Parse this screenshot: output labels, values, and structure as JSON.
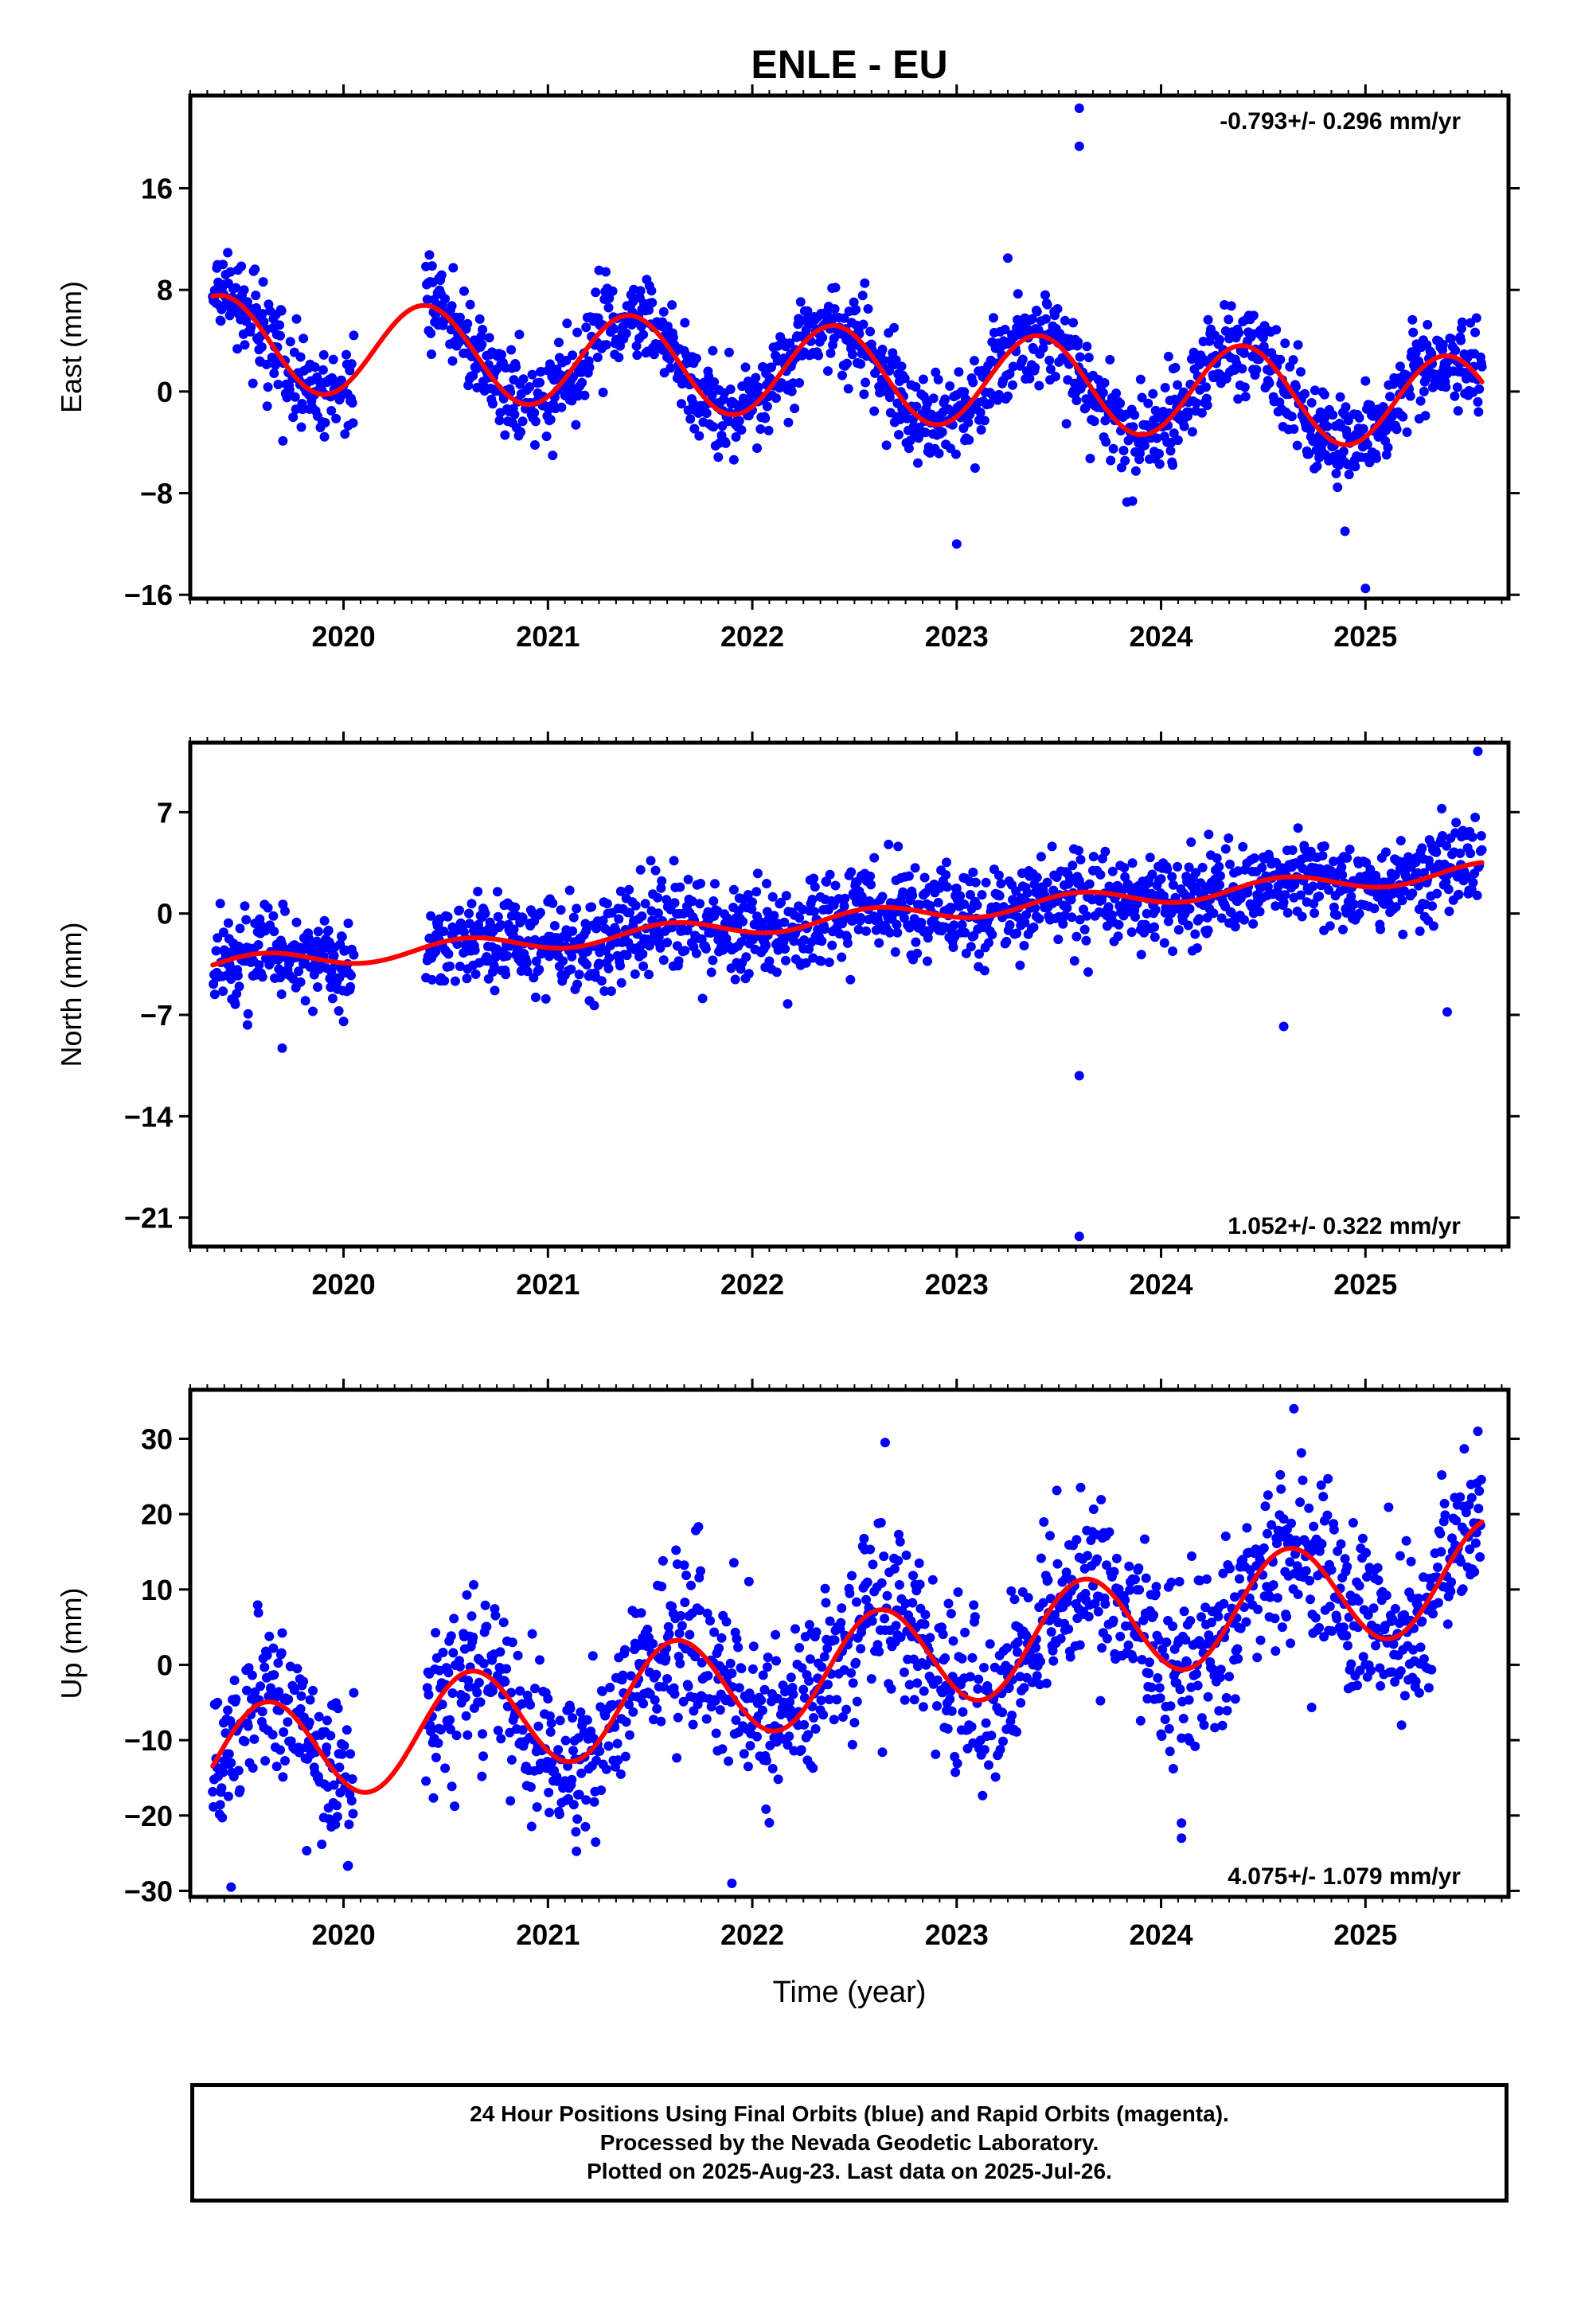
{
  "title": "ENLE - EU",
  "xlabel": "Time (year)",
  "footer": {
    "line1": "24 Hour Positions Using Final Orbits (blue) and Rapid Orbits (magenta).",
    "line2": "Processed by the Nevada Geodetic Laboratory.",
    "line3": "Plotted on 2025-Aug-23. Last data on 2025-Jul-26."
  },
  "colors": {
    "points": "#0000ff",
    "fit": "#ff0000",
    "axes": "#000000"
  },
  "chart_data": [
    {
      "type": "scatter",
      "panel": "east",
      "ylabel": "East (mm)",
      "rate": "-0.793+/- 0.296 mm/yr",
      "rate_position": "top-right",
      "xlim": [
        2019.25,
        2025.7
      ],
      "ylim": [
        -16.3,
        23.3
      ],
      "yticks": [
        16,
        8,
        0,
        -8,
        -16
      ],
      "ytick_labels": [
        "16",
        "8",
        "0",
        "−8",
        "−16"
      ],
      "xticks": [
        2020,
        2021,
        2022,
        2023,
        2024,
        2025
      ],
      "grid": false,
      "data_start": 2019.36,
      "data_end": 2025.57,
      "gap": [
        2020.05,
        2020.4
      ],
      "trend": {
        "offset_at_2019.36": 3.9,
        "rate_mm_per_yr": -0.793
      },
      "seasonal": {
        "amplitude": 3.7,
        "peak_phase_year": 0.4
      },
      "scatter_sd": 1.8,
      "outliers": [
        [
          2023.6,
          22.3
        ],
        [
          2023.6,
          19.3
        ],
        [
          2025.0,
          -15.5
        ],
        [
          2023.0,
          -12.0
        ],
        [
          2024.9,
          -11.0
        ],
        [
          2023.25,
          10.5
        ]
      ],
      "fit_series_name": "fit",
      "points_series_name": "daily positions"
    },
    {
      "type": "scatter",
      "panel": "north",
      "ylabel": "North (mm)",
      "rate": "1.052+/- 0.322 mm/yr",
      "rate_position": "bottom-right",
      "xlim": [
        2019.25,
        2025.7
      ],
      "ylim": [
        -23.0,
        11.8
      ],
      "yticks": [
        7,
        0,
        -7,
        -14,
        -21
      ],
      "ytick_labels": [
        "7",
        "0",
        "−7",
        "−14",
        "−21"
      ],
      "xticks": [
        2020,
        2021,
        2022,
        2023,
        2024,
        2025
      ],
      "grid": false,
      "data_start": 2019.36,
      "data_end": 2025.57,
      "gap": [
        2020.05,
        2020.4
      ],
      "trend": {
        "offset_at_2019.36": -3.6,
        "rate_mm_per_yr": 1.052
      },
      "seasonal": {
        "amplitude": 0.6,
        "peak_phase_year": 0.6
      },
      "scatter_sd": 1.6,
      "outliers": [
        [
          2023.6,
          -11.2
        ],
        [
          2023.6,
          -22.3
        ],
        [
          2025.55,
          11.2
        ],
        [
          2024.6,
          -7.8
        ],
        [
          2019.7,
          -9.3
        ],
        [
          2025.4,
          -6.8
        ]
      ],
      "fit_series_name": "fit",
      "points_series_name": "daily positions"
    },
    {
      "type": "scatter",
      "panel": "up",
      "ylabel": "Up (mm)",
      "rate": "4.075+/- 1.079 mm/yr",
      "rate_position": "bottom-right",
      "xlim": [
        2019.25,
        2025.7
      ],
      "ylim": [
        -30.8,
        36.5
      ],
      "yticks": [
        30,
        20,
        10,
        0,
        -10,
        -20,
        -30
      ],
      "ytick_labels": [
        "30",
        "20",
        "10",
        "0",
        "−10",
        "−20",
        "−30"
      ],
      "xticks": [
        2020,
        2021,
        2022,
        2023,
        2024,
        2025
      ],
      "grid": false,
      "data_start": 2019.36,
      "data_end": 2025.57,
      "gap": [
        2020.05,
        2020.4
      ],
      "trend": {
        "offset_at_2019.36": -13.0,
        "rate_mm_per_yr": 4.075
      },
      "seasonal": {
        "amplitude": 7.0,
        "peak_phase_year": 0.62
      },
      "scatter_sd": 5.5,
      "outliers": [
        [
          2024.65,
          34.0
        ],
        [
          2022.65,
          29.5
        ],
        [
          2025.55,
          31.0
        ],
        [
          2024.1,
          -23.0
        ],
        [
          2024.1,
          -21.0
        ],
        [
          2019.45,
          -29.5
        ],
        [
          2021.9,
          -29.0
        ]
      ],
      "fit_series_name": "fit",
      "points_series_name": "daily positions"
    }
  ]
}
